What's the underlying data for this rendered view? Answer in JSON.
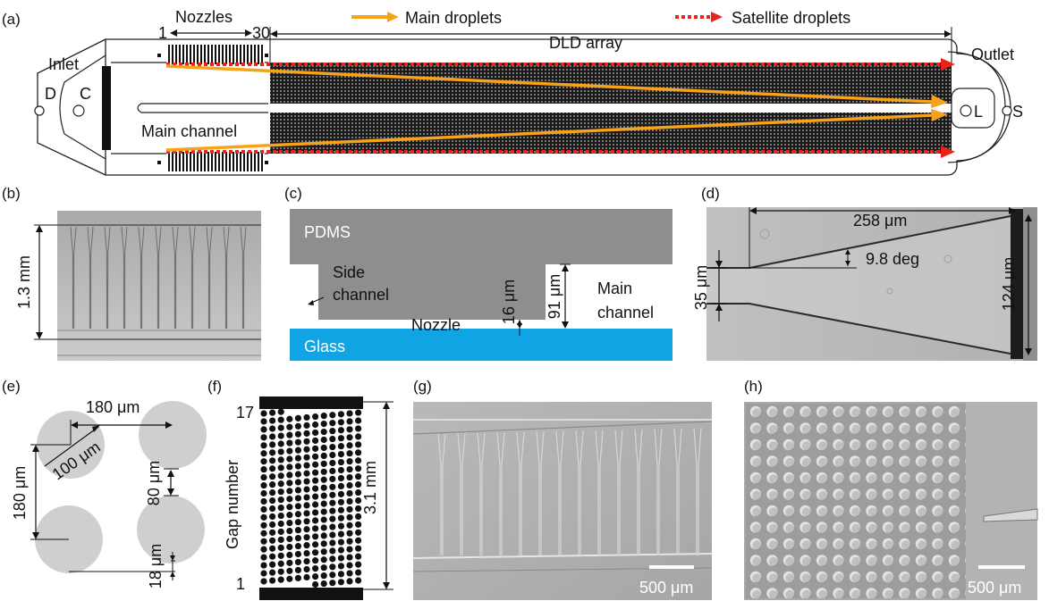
{
  "panels": {
    "a": {
      "label": "(a)",
      "legend_main": "Main droplets",
      "legend_satellite": "Satellite droplets",
      "nozzles": "Nozzles",
      "nozzle_first": "1",
      "nozzle_last": "30",
      "dld_array": "DLD array",
      "inlet": "Inlet",
      "outlet": "Outlet",
      "port_d": "D",
      "port_c": "C",
      "port_l": "L",
      "port_s": "S",
      "main_channel": "Main channel",
      "colors": {
        "main": "#f7a21b",
        "satellite": "#e8231a"
      }
    },
    "b": {
      "label": "(b)",
      "height": "1.3 mm"
    },
    "c": {
      "label": "(c)",
      "pdms": "PDMS",
      "side_channel_1": "Side",
      "side_channel_2": "channel",
      "nozzle": "Nozzle",
      "glass": "Glass",
      "depth_small": "16 μm",
      "depth_large": "91 μm",
      "main_channel_1": "Main",
      "main_channel_2": "channel",
      "colors": {
        "pdms": "#8e8e8e",
        "glass": "#11a4e4"
      }
    },
    "d": {
      "label": "(d)",
      "length": "258 μm",
      "angle": "9.8 deg",
      "inlet_width": "35 μm",
      "outlet_width": "124 μm"
    },
    "e": {
      "label": "(e)",
      "pitch_x": "180 μm",
      "diameter": "100 μm",
      "pitch_y": "180 μm",
      "gap": "80 μm",
      "shift": "18 μm"
    },
    "f": {
      "label": "(f)",
      "gap_top": "17",
      "gap_bottom": "1",
      "axis": "Gap number",
      "span": "3.1 mm"
    },
    "g": {
      "label": "(g)",
      "scale": "500 μm"
    },
    "h": {
      "label": "(h)",
      "scale": "500 μm"
    }
  }
}
